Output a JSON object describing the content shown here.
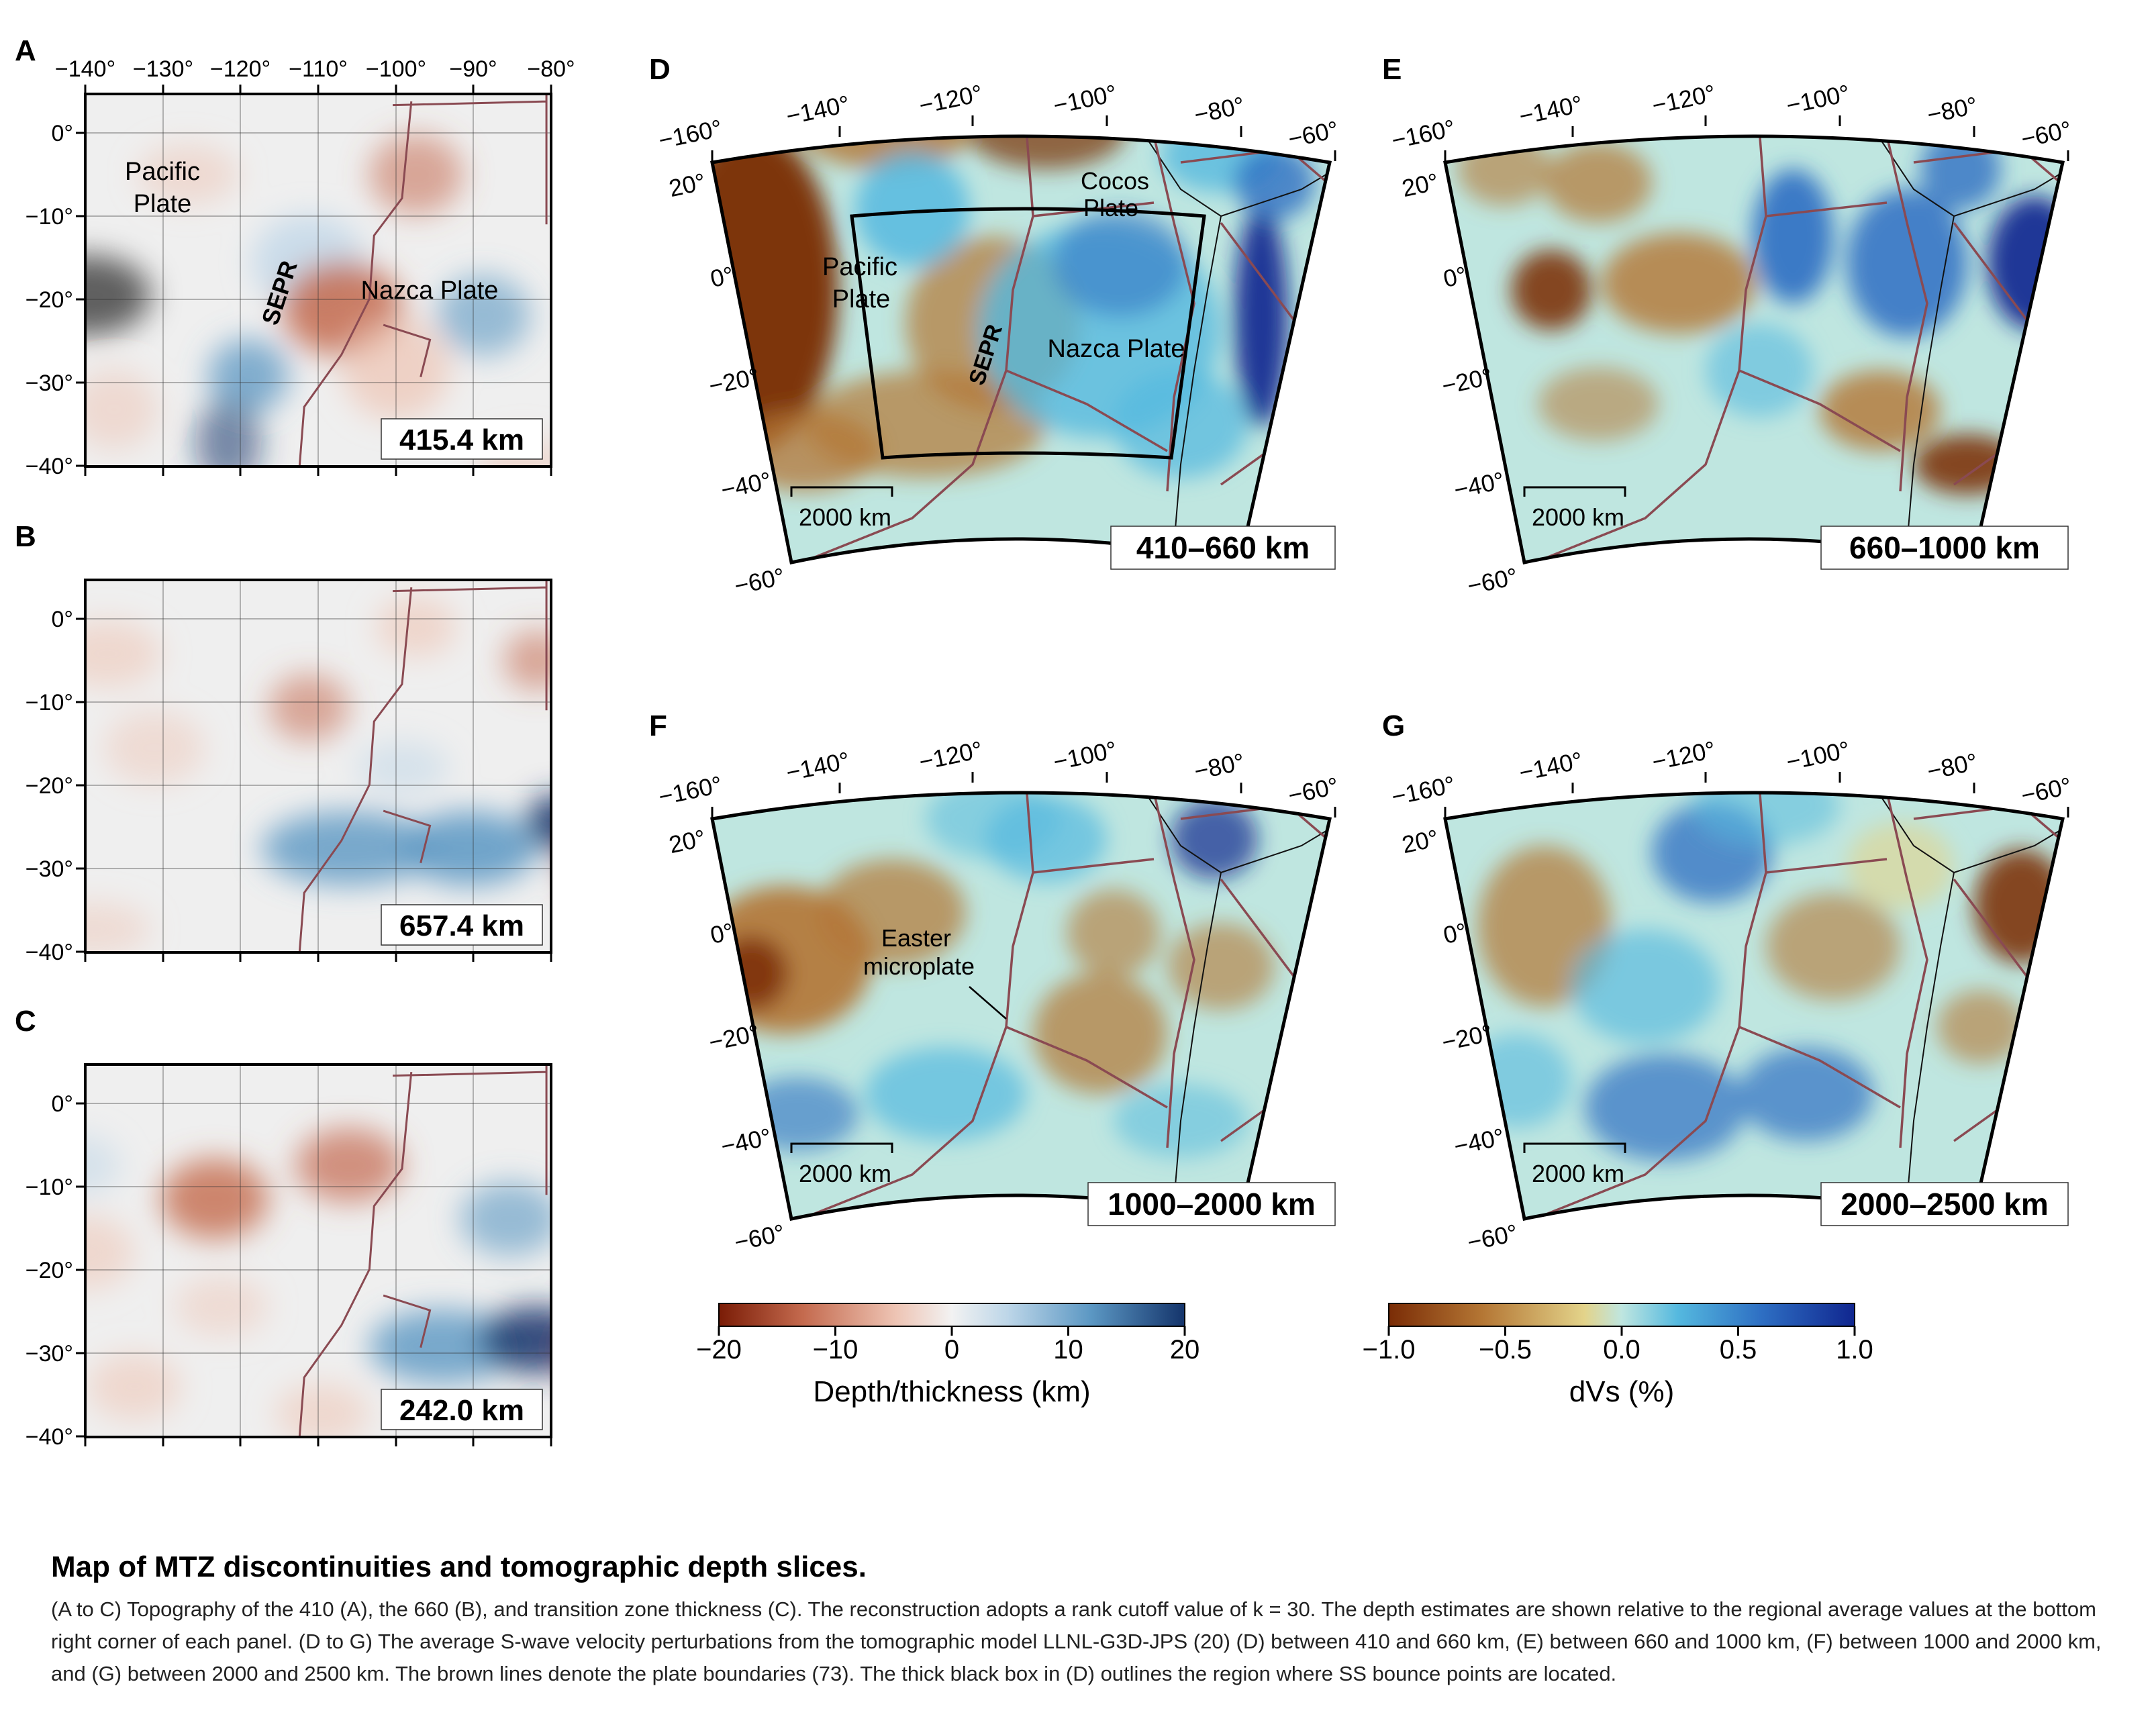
{
  "colors": {
    "depth_scale": [
      "#7a1c06",
      "#c46a4e",
      "#eec4b4",
      "#f2f2f2",
      "#bdd6e8",
      "#5b97c3",
      "#14346b"
    ],
    "dvs_scale": [
      "#7a2c06",
      "#b47634",
      "#e3d38a",
      "#bfe6e0",
      "#55b9df",
      "#2e6fc3",
      "#10268f"
    ],
    "plate_boundary": "#8a4a52"
  },
  "panels_left": [
    {
      "label": "A",
      "depth": "415.4 km",
      "xticks": [
        "−140°",
        "−130°",
        "−120°",
        "−110°",
        "−100°",
        "−90°",
        "−80°"
      ],
      "yticks": [
        "0°",
        "−10°",
        "−20°",
        "−30°",
        "−40°"
      ],
      "annotations": [
        "Pacific",
        "Plate",
        "SEPR",
        "Nazca Plate"
      ]
    },
    {
      "label": "B",
      "depth": "657.4 km",
      "yticks": [
        "0°",
        "−10°",
        "−20°",
        "−30°",
        "−40°"
      ]
    },
    {
      "label": "C",
      "depth": "242.0 km",
      "yticks": [
        "0°",
        "−10°",
        "−20°",
        "−30°",
        "−40°"
      ]
    }
  ],
  "panels_right": [
    {
      "label": "D",
      "depth": "410–660 km",
      "annotations": [
        "Cocos",
        "Plate",
        "Pacific",
        "Plate",
        "SEPR",
        "Nazca Plate"
      ]
    },
    {
      "label": "E",
      "depth": "660–1000 km"
    },
    {
      "label": "F",
      "depth": "1000–2000 km",
      "annotations": [
        "Easter",
        "microplate"
      ]
    },
    {
      "label": "G",
      "depth": "2000–2500 km"
    }
  ],
  "fan_ticks": {
    "lon": [
      "−160°",
      "−140°",
      "−120°",
      "−100°",
      "−80°",
      "−60°"
    ],
    "lat": [
      "20°",
      "0°",
      "−20°",
      "−40°",
      "−60°"
    ]
  },
  "scale_bar": "2000 km",
  "colorbar_depth": {
    "ticks": [
      "−20",
      "−10",
      "0",
      "10",
      "20"
    ],
    "label": "Depth/thickness (km)"
  },
  "colorbar_dvs": {
    "ticks": [
      "−1.0",
      "−0.5",
      "0.0",
      "0.5",
      "1.0"
    ],
    "label": "dVs (%)"
  },
  "caption": {
    "title": "Map of MTZ discontinuities and tomographic depth slices.",
    "body": "(A to C) Topography of the 410 (A), the 660 (B), and transition zone thickness (C). The reconstruction adopts a rank cutoff value of k = 30. The depth estimates are shown relative to the regional average values at the bottom right corner of each panel. (D to G) The average S-wave velocity perturbations from the tomographic model LLNL-G3D-JPS (20) (D) between 410 and 660 km, (E) between 660 and 1000 km, (F) between 1000 and 2000 km, and (G) between 2000 and 2500 km. The brown lines denote the plate boundaries (73). The thick black box in (D) outlines the region where SS bounce points are located."
  }
}
